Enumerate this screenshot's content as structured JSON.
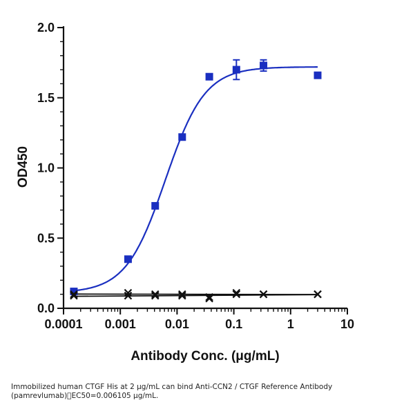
{
  "chart_data": {
    "type": "scatter",
    "title": "",
    "xlabel": "Antibody Conc. (μg/mL)",
    "ylabel": "OD450",
    "x_scale": "log",
    "xlim": [
      0.0001,
      10
    ],
    "ylim": [
      0.0,
      2.0
    ],
    "x_ticks": [
      "0.0001",
      "0.001",
      "0.01",
      "0.1",
      "1",
      "10"
    ],
    "y_ticks": [
      "0.0",
      "0.5",
      "1.0",
      "1.5",
      "2.0"
    ],
    "grid": false,
    "legend": "none",
    "series": [
      {
        "marker": "square",
        "color": "#1a2fc0",
        "fit": "sigmoid",
        "x": [
          0.000152,
          0.00137,
          0.00412,
          0.0123,
          0.037,
          0.111,
          0.333,
          3.0
        ],
        "y": [
          0.12,
          0.35,
          0.73,
          1.22,
          1.65,
          1.7,
          1.73,
          1.66
        ],
        "error": [
          0.0,
          0.0,
          0.0,
          0.02,
          0.0,
          0.07,
          0.04,
          0.0
        ]
      },
      {
        "marker": "x",
        "color": "#111111",
        "fit": "flat",
        "x": [
          0.000152,
          0.00137,
          0.00412,
          0.0123,
          0.037,
          0.111,
          0.333,
          3.0
        ],
        "y": [
          0.1,
          0.11,
          0.1,
          0.1,
          0.08,
          0.11,
          0.1,
          0.1
        ]
      },
      {
        "marker": "x",
        "color": "#111111",
        "fit": "flat",
        "x": [
          0.000152,
          0.00137,
          0.00412,
          0.0123,
          0.037,
          0.111,
          0.333,
          3.0
        ],
        "y": [
          0.09,
          0.09,
          0.09,
          0.09,
          0.07,
          0.1,
          0.1,
          0.1
        ]
      }
    ]
  },
  "caption": "Immobilized human CTGF His at 2 μg/mL can bind  Anti-CCN2 / CTGF Reference Antibody (pamrevlumab)\u0000EC50=0.006105 μg/mL."
}
